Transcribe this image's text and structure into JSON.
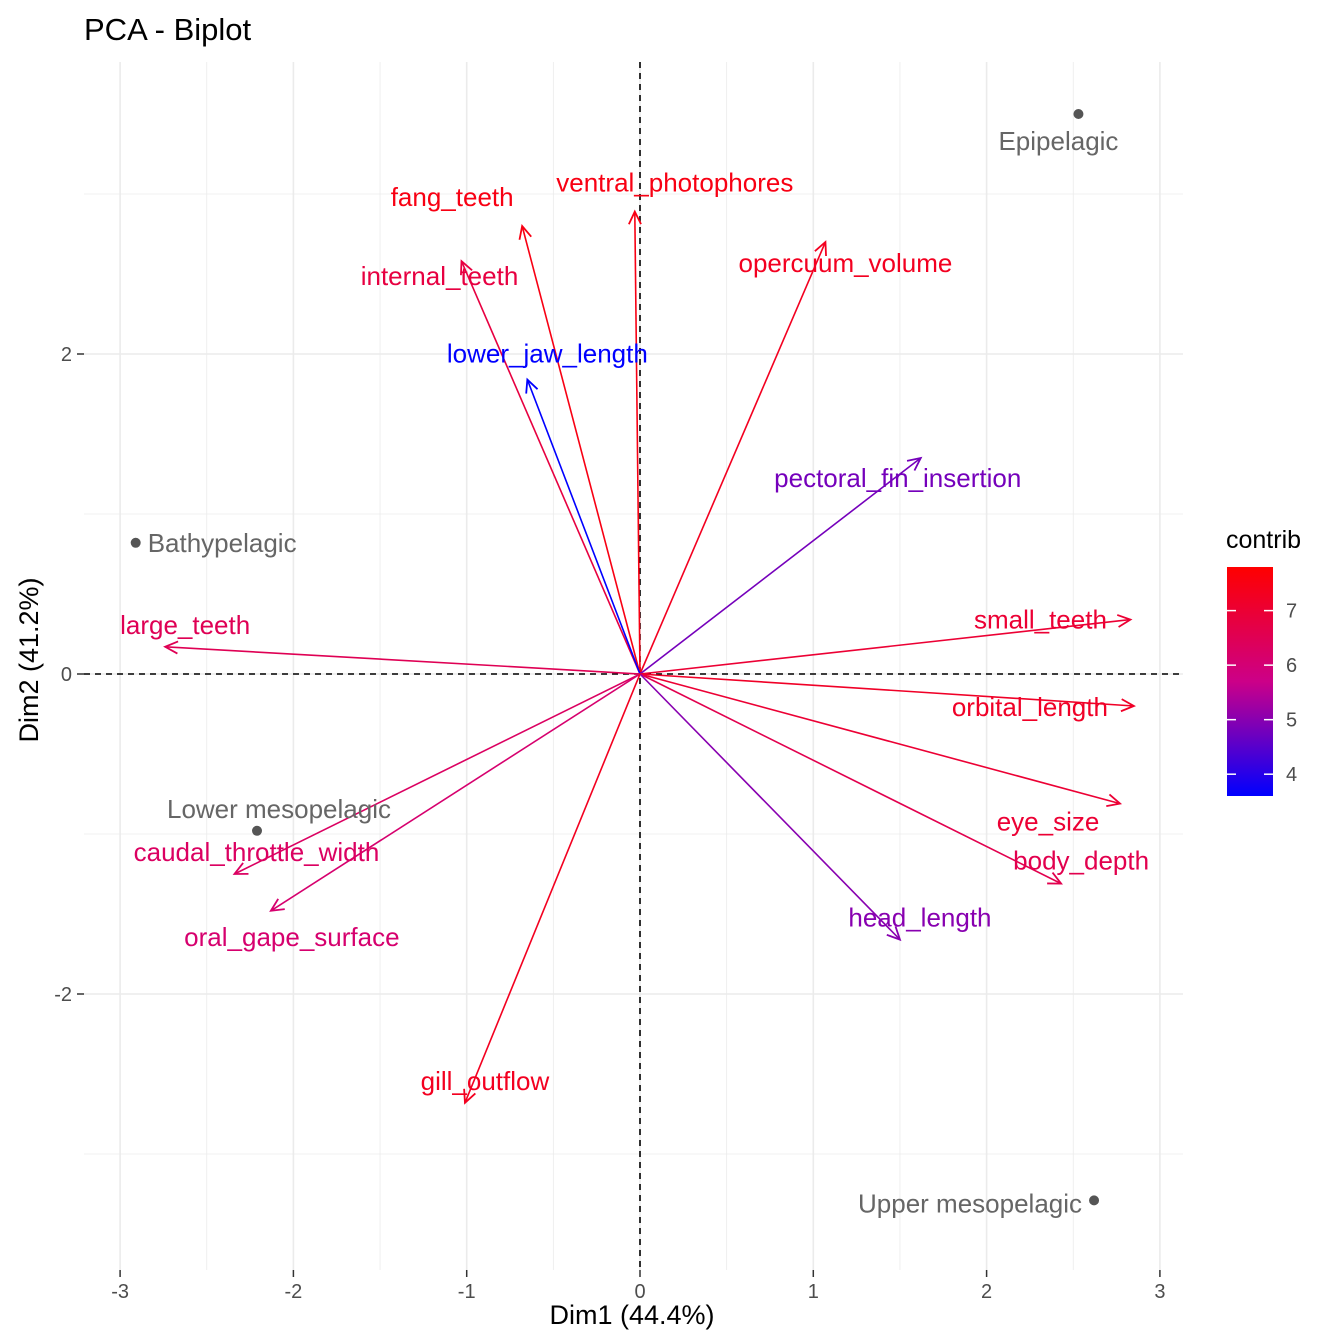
{
  "chart_data": {
    "type": "scatter",
    "title": "PCA - Biplot",
    "xlabel": "Dim1 (44.4%)",
    "ylabel": "Dim2 (41.2%)",
    "xlim": [
      -3.12,
      3.12
    ],
    "ylim": [
      -3.77,
      3.81
    ],
    "x_ticks": [
      -3,
      -2,
      -1,
      0,
      1,
      2,
      3
    ],
    "y_ticks": [
      -2,
      0,
      2
    ],
    "grid": true,
    "reference_lines": {
      "x": 0,
      "y": 0,
      "style": "dashed"
    },
    "individuals": [
      {
        "label": "Epipelagic",
        "x": 2.53,
        "y": 3.5
      },
      {
        "label": "Bathypelagic",
        "x": -2.91,
        "y": 0.82
      },
      {
        "label": "Lower mesopelagic",
        "x": -2.21,
        "y": -0.98
      },
      {
        "label": "Upper mesopelagic",
        "x": 2.62,
        "y": -3.29
      }
    ],
    "variables": [
      {
        "label": "ventral_photophores",
        "x": -0.03,
        "y": 2.89,
        "contrib": 7.5
      },
      {
        "label": "fang_teeth",
        "x": -0.68,
        "y": 2.8,
        "contrib": 7.5
      },
      {
        "label": "internal_teeth",
        "x": -1.03,
        "y": 2.58,
        "contrib": 6.8
      },
      {
        "label": "opercuum_volume",
        "x": 1.07,
        "y": 2.7,
        "contrib": 7.3
      },
      {
        "label": "lower_jaw_length",
        "x": -0.65,
        "y": 1.84,
        "contrib": 3.6
      },
      {
        "label": "pectoral_fin_insertion",
        "x": 1.62,
        "y": 1.35,
        "contrib": 4.8
      },
      {
        "label": "small_teeth",
        "x": 2.83,
        "y": 0.34,
        "contrib": 7.0
      },
      {
        "label": "large_teeth",
        "x": -2.74,
        "y": 0.17,
        "contrib": 6.5
      },
      {
        "label": "orbital_length",
        "x": 2.85,
        "y": -0.2,
        "contrib": 7.2
      },
      {
        "label": "eye_size",
        "x": 2.77,
        "y": -0.81,
        "contrib": 7.0
      },
      {
        "label": "body_depth",
        "x": 2.43,
        "y": -1.31,
        "contrib": 6.6
      },
      {
        "label": "head_length",
        "x": 1.5,
        "y": -1.66,
        "contrib": 5.0
      },
      {
        "label": "caudal_throttle_width",
        "x": -2.34,
        "y": -1.25,
        "contrib": 6.3
      },
      {
        "label": "oral_gape_surface",
        "x": -2.13,
        "y": -1.48,
        "contrib": 6.1
      },
      {
        "label": "gill_outflow",
        "x": -1.01,
        "y": -2.68,
        "contrib": 7.3
      }
    ],
    "legend": {
      "title": "contrib",
      "ticks": [
        4,
        5,
        6,
        7
      ],
      "range": [
        3.6,
        7.8
      ],
      "low_color": "#0000ff",
      "high_color": "#ff0000",
      "placement": "right"
    },
    "colors": {
      "individual_point": "#555555",
      "individual_label": "#666666",
      "grid": "#ebebeb",
      "axis_text": "#4d4d4d"
    }
  }
}
